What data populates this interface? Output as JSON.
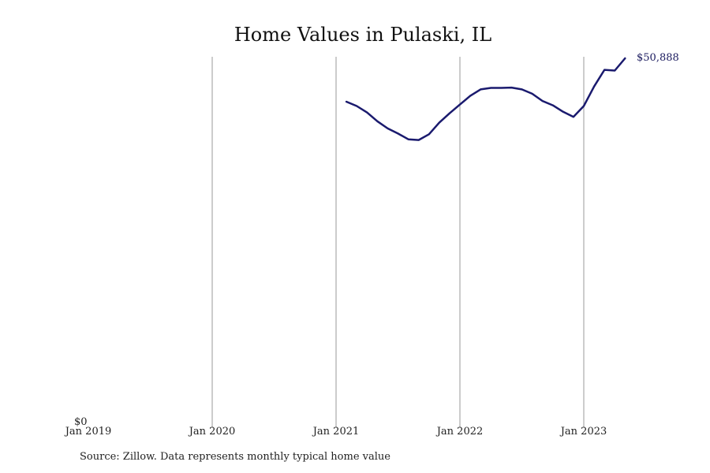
{
  "chart_data": {
    "type": "line",
    "title": "Home Values in Pulaski, IL",
    "xlabel": "",
    "ylabel": "",
    "x_ticks": [
      "Jan 2019",
      "Jan 2020",
      "Jan 2021",
      "Jan 2022",
      "Jan 2023"
    ],
    "y_ticks": [
      "$0"
    ],
    "ylim": [
      0,
      51000
    ],
    "grid": "vertical lines at each year",
    "series": [
      {
        "color": "#1a1a6e",
        "x": [
          "2021-02",
          "2021-03",
          "2021-04",
          "2021-05",
          "2021-06",
          "2021-07",
          "2021-08",
          "2021-09",
          "2021-10",
          "2021-11",
          "2021-12",
          "2022-01",
          "2022-02",
          "2022-03",
          "2022-04",
          "2022-05",
          "2022-06",
          "2022-07",
          "2022-08",
          "2022-09",
          "2022-10",
          "2022-11",
          "2022-12",
          "2023-01",
          "2023-02",
          "2023-03",
          "2023-04",
          "2023-05"
        ],
        "values": [
          44900,
          44300,
          43400,
          42200,
          41200,
          40500,
          39700,
          39600,
          40400,
          42000,
          43300,
          44500,
          45700,
          46600,
          46800,
          46800,
          46850,
          46600,
          46000,
          45000,
          44400,
          43500,
          42800,
          44300,
          47000,
          49300,
          49200,
          50888
        ]
      }
    ],
    "end_label": "$50,888",
    "source": "Source: Zillow. Data represents monthly typical home value"
  }
}
